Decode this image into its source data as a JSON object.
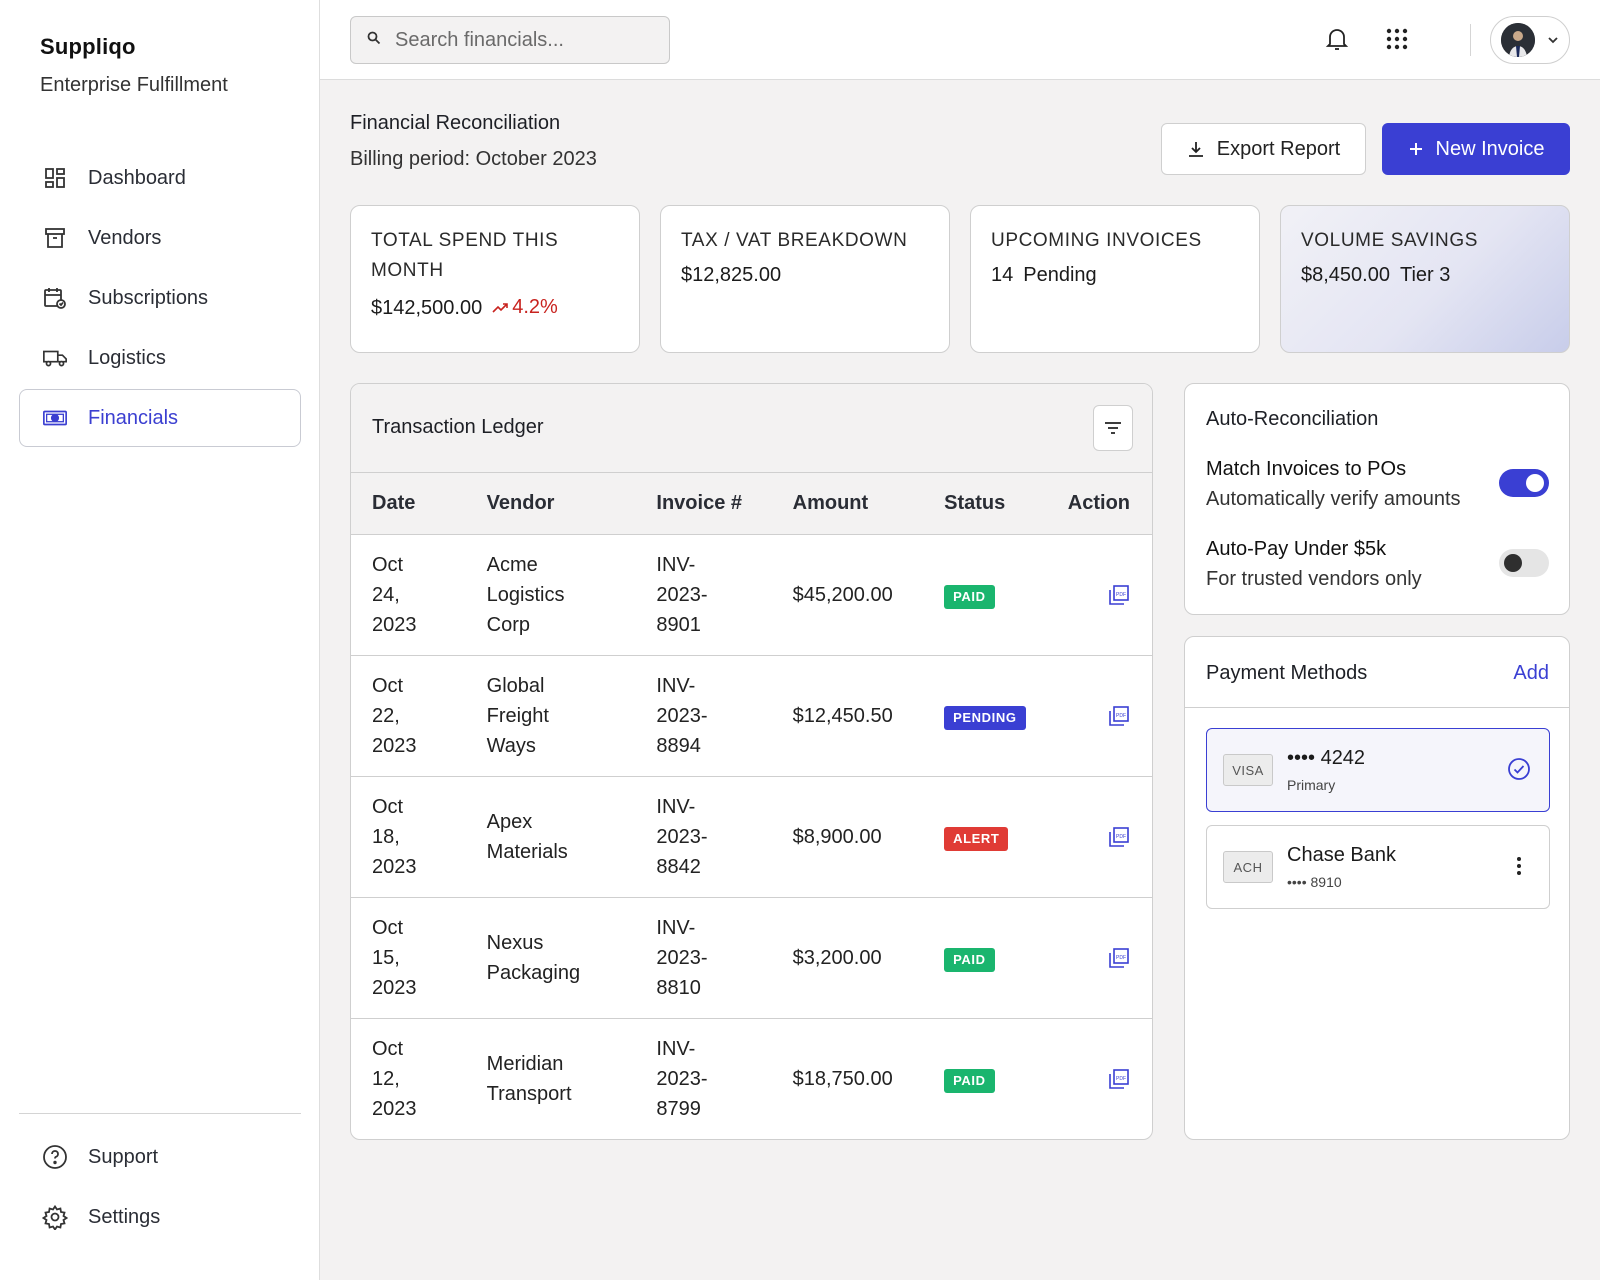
{
  "brand": {
    "name": "Suppliqo",
    "subtitle": "Enterprise Fulfillment"
  },
  "nav": {
    "items": [
      {
        "label": "Dashboard",
        "icon": "dashboard-icon"
      },
      {
        "label": "Vendors",
        "icon": "archive-icon"
      },
      {
        "label": "Subscriptions",
        "icon": "calendar-sync-icon"
      },
      {
        "label": "Logistics",
        "icon": "truck-icon"
      },
      {
        "label": "Financials",
        "icon": "money-icon",
        "active": true
      }
    ],
    "bottom": [
      {
        "label": "Support",
        "icon": "help-icon"
      },
      {
        "label": "Settings",
        "icon": "gear-icon"
      }
    ]
  },
  "topbar": {
    "search_placeholder": "Search financials...",
    "search_value": "",
    "icons": [
      "bell-icon",
      "apps-grid-icon",
      "avatar",
      "chevron-down-icon"
    ]
  },
  "page": {
    "title": "Financial Reconciliation",
    "subtitle": "Billing period: October 2023",
    "export_label": "Export Report",
    "new_label": "New Invoice"
  },
  "kpis": [
    {
      "label": "TOTAL SPEND THIS MONTH",
      "value": "$142,500.00",
      "trend": "4.2%"
    },
    {
      "label": "TAX / VAT BREAKDOWN",
      "value": "$12,825.00"
    },
    {
      "label": "UPCOMING INVOICES",
      "value": "14",
      "note": "Pending"
    },
    {
      "label": "VOLUME SAVINGS",
      "value": "$8,450.00",
      "note": "Tier 3"
    }
  ],
  "ledger": {
    "title": "Transaction Ledger",
    "columns": [
      "Date",
      "Vendor",
      "Invoice #",
      "Amount",
      "Status",
      "Action"
    ],
    "rows": [
      {
        "date": "Oct 24, 2023",
        "vendor": "Acme Logistics Corp",
        "invoice": "INV-2023-8901",
        "amount": "$45,200.00",
        "status": "PAID",
        "status_kind": "paid"
      },
      {
        "date": "Oct 22, 2023",
        "vendor": "Global Freight Ways",
        "invoice": "INV-2023-8894",
        "amount": "$12,450.50",
        "status": "PENDING",
        "status_kind": "pending"
      },
      {
        "date": "Oct 18, 2023",
        "vendor": "Apex Materials",
        "invoice": "INV-2023-8842",
        "amount": "$8,900.00",
        "status": "ALERT",
        "status_kind": "alert"
      },
      {
        "date": "Oct 15, 2023",
        "vendor": "Nexus Packaging",
        "invoice": "INV-2023-8810",
        "amount": "$3,200.00",
        "status": "PAID",
        "status_kind": "paid"
      },
      {
        "date": "Oct 12, 2023",
        "vendor": "Meridian Transport",
        "invoice": "INV-2023-8799",
        "amount": "$18,750.00",
        "status": "PAID",
        "status_kind": "paid"
      }
    ]
  },
  "auto": {
    "title": "Auto-Reconciliation",
    "options": [
      {
        "title": "Match Invoices to POs",
        "subtitle": "Automatically verify amounts",
        "enabled": true
      },
      {
        "title": "Auto-Pay Under $5k",
        "subtitle": "For trusted vendors only",
        "enabled": false
      }
    ]
  },
  "payments": {
    "title": "Payment Methods",
    "add_label": "Add",
    "methods": [
      {
        "tag": "VISA",
        "main": "•••• 4242",
        "sub": "Primary",
        "selected": true
      },
      {
        "tag": "ACH",
        "main": "Chase Bank",
        "sub": "•••• 8910",
        "selected": false
      }
    ]
  },
  "colors": {
    "accent": "#3a3fd3",
    "paid": "#1ab56e",
    "pending": "#3a3fd3",
    "alert": "#e03b35",
    "trend_up": "#c8231f"
  }
}
